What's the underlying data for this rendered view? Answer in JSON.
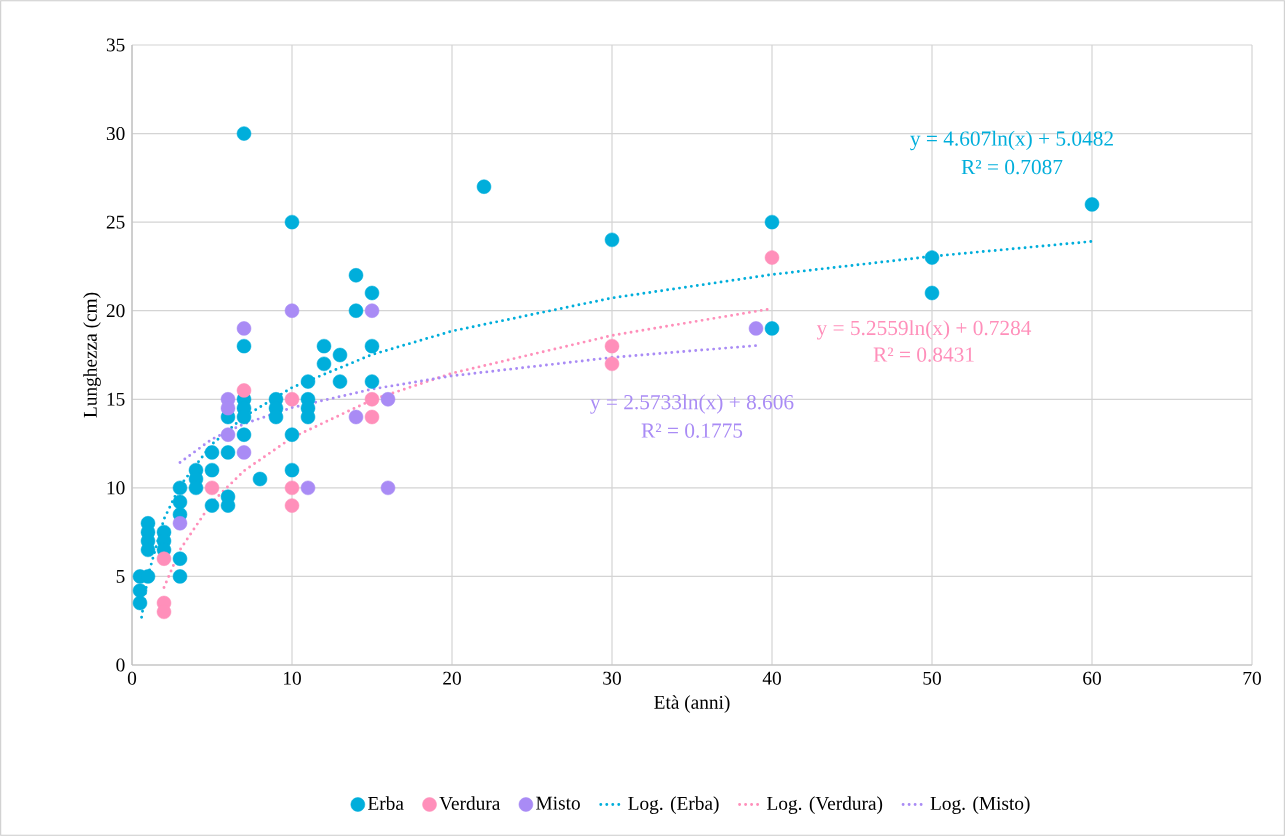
{
  "chart_data": {
    "type": "scatter",
    "xlabel": "Età (anni)",
    "ylabel": "Lunghezza (cm)",
    "xlim": [
      0,
      70
    ],
    "ylim": [
      0,
      35
    ],
    "xticks": [
      0,
      10,
      20,
      30,
      40,
      50,
      60,
      70
    ],
    "yticks": [
      0,
      5,
      10,
      15,
      20,
      25,
      30,
      35
    ],
    "grid": true,
    "legend": "bottom",
    "marker": "circle",
    "series": [
      {
        "name": "Erba",
        "color": "#00aedb",
        "x": [
          0.5,
          0.5,
          0.5,
          1,
          1,
          1,
          1,
          1,
          2,
          2,
          2,
          3,
          3,
          3,
          3,
          3,
          4,
          4,
          4,
          5,
          5,
          5,
          6,
          6,
          6,
          6,
          7,
          7,
          7,
          7,
          7,
          7,
          8,
          9,
          9,
          9,
          10,
          10,
          10,
          11,
          11,
          11,
          11,
          12,
          12,
          13,
          13,
          14,
          14,
          15,
          15,
          15,
          22,
          30,
          40,
          40,
          50,
          50,
          60
        ],
        "values": [
          5,
          4.2,
          3.5,
          8,
          7.5,
          7,
          6.5,
          5,
          7.5,
          7,
          6.5,
          10,
          9.2,
          8.5,
          6,
          5,
          11,
          10.5,
          10,
          12,
          11,
          9,
          14,
          12,
          9.5,
          9,
          30,
          18,
          15,
          14.5,
          14,
          13,
          10.5,
          15,
          14.5,
          14,
          25,
          13,
          11,
          16,
          15,
          14.5,
          14,
          18,
          17,
          17.5,
          16,
          22,
          20,
          21,
          18,
          16,
          27,
          24,
          25,
          19,
          23,
          21,
          26
        ]
      },
      {
        "name": "Verdura",
        "color": "#ff8fba",
        "x": [
          2,
          2,
          2,
          5,
          7,
          10,
          10,
          10,
          15,
          15,
          30,
          30,
          40
        ],
        "values": [
          6,
          3.5,
          3,
          10,
          15.5,
          15,
          10,
          9,
          15,
          14,
          18,
          17,
          23
        ]
      },
      {
        "name": "Misto",
        "color": "#a98bf5",
        "x": [
          3,
          6,
          6,
          6,
          7,
          7,
          10,
          11,
          14,
          15,
          16,
          16,
          39
        ],
        "values": [
          8,
          15,
          14.5,
          13,
          19,
          12,
          20,
          10,
          14,
          20,
          15,
          10,
          19
        ]
      },
      {
        "name": "Log. (Erba)",
        "type": "line",
        "marker": "none",
        "line_style": "dotted",
        "color": "#00aedb",
        "x": [
          0.6,
          1,
          2,
          3,
          5,
          7,
          10,
          15,
          20,
          30,
          40,
          50,
          60
        ],
        "values": [
          2.7,
          5.05,
          8.24,
          10.11,
          12.46,
          14.01,
          15.66,
          17.52,
          18.85,
          20.72,
          22.04,
          23.07,
          23.91
        ]
      },
      {
        "name": "Log. (Verdura)",
        "type": "line",
        "marker": "none",
        "line_style": "dotted",
        "color": "#ff8fba",
        "x": [
          2,
          3,
          5,
          7,
          10,
          15,
          20,
          30,
          40
        ],
        "values": [
          4.37,
          6.5,
          9.19,
          10.96,
          12.83,
          14.96,
          16.47,
          18.6,
          20.12
        ]
      },
      {
        "name": "Log. (Misto)",
        "type": "line",
        "marker": "none",
        "line_style": "dotted",
        "color": "#a98bf5",
        "x": [
          3,
          5,
          7,
          10,
          15,
          20,
          30,
          39
        ],
        "values": [
          11.43,
          12.75,
          13.61,
          14.53,
          15.57,
          16.32,
          17.36,
          18.03
        ]
      }
    ],
    "annotations": [
      "y = 4.607ln(x) + 5.0482",
      "R² = 0.7087",
      "y = 5.2559ln(x) + 0.7284",
      "R² = 0.8431",
      "y = 2.5733ln(x) + 8.606",
      "R² = 0.1775"
    ]
  }
}
